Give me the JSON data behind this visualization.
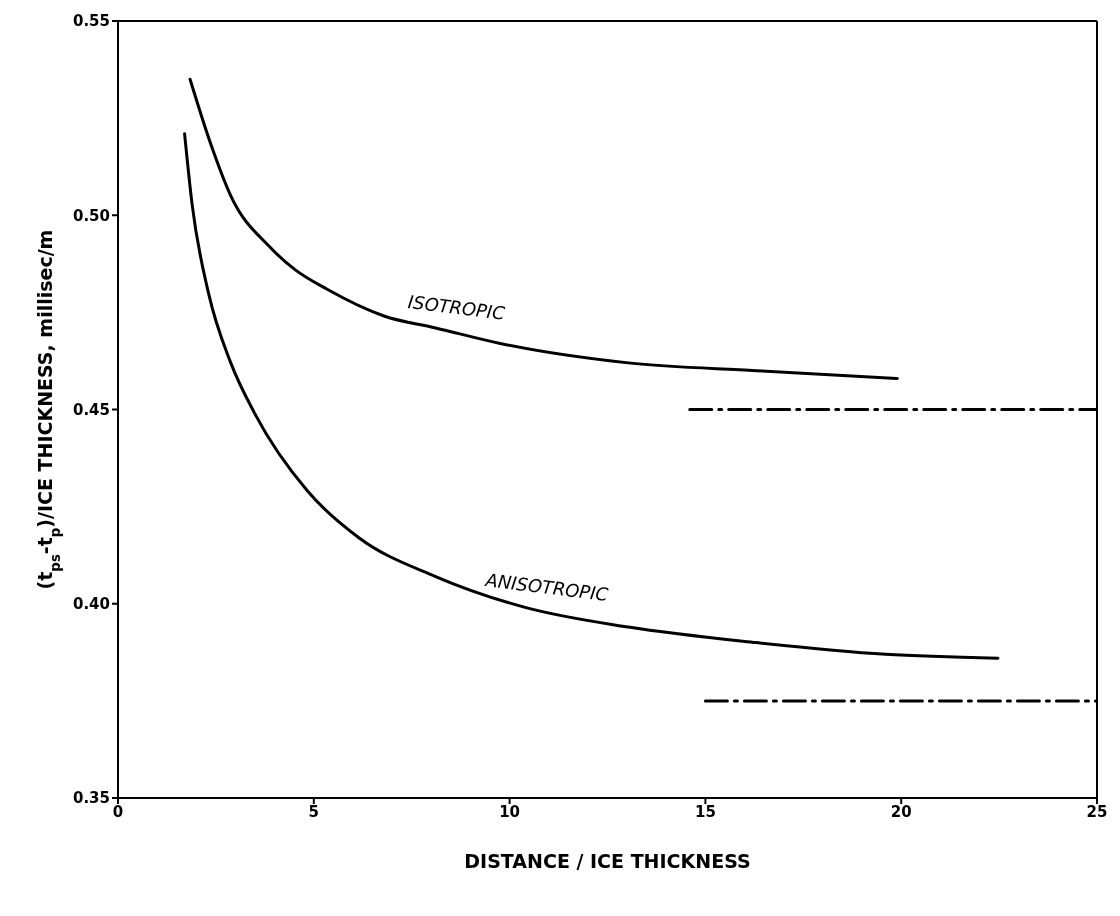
{
  "chart_data": {
    "type": "line",
    "xlabel": "DISTANCE / ICE THICKNESS",
    "ylabel": "(t$_{ps}$-t$_{p}$)/ICE THICKNESS, millisec/m",
    "xlim": [
      0,
      25
    ],
    "xticks": [
      0,
      5,
      10,
      15,
      20,
      25
    ],
    "ylim": [
      0.35,
      0.55
    ],
    "yticks": [
      {
        "value": 0.35,
        "label": "0.35"
      },
      {
        "value": 0.4,
        "label": "0.40"
      },
      {
        "value": 0.45,
        "label": "0.45"
      },
      {
        "value": 0.5,
        "label": "0.50"
      },
      {
        "value": 0.55,
        "label": "0.55"
      }
    ],
    "marker": "none",
    "series": [
      {
        "name": "ISOTROPIC",
        "color": "#000000",
        "line_style": "solid",
        "x": [
          1.84,
          2.38,
          2.88,
          3.86,
          4.52,
          5.33,
          6.81,
          8.11,
          9.76,
          13.03,
          16.3,
          19.9
        ],
        "values": [
          0.535,
          0.518,
          0.505,
          0.492,
          0.486,
          0.481,
          0.474,
          0.471,
          0.467,
          0.462,
          0.46,
          0.458
        ]
      },
      {
        "name": "ANISOTROPIC",
        "color": "#000000",
        "line_style": "solid",
        "x": [
          1.7,
          1.89,
          2.31,
          2.88,
          3.49,
          4.84,
          6.15,
          8.11,
          10.42,
          13.03,
          16.3,
          19.6,
          22.47
        ],
        "values": [
          0.521,
          0.503,
          0.48,
          0.462,
          0.449,
          0.429,
          0.417,
          0.407,
          0.399,
          0.394,
          0.39,
          0.387,
          0.386
        ]
      },
      {
        "color": "#000000",
        "line_style": "dashed",
        "x": [
          14.6,
          25
        ],
        "values": [
          0.45,
          0.45
        ]
      },
      {
        "color": "#000000",
        "line_style": "dashed",
        "x": [
          15,
          25
        ],
        "values": [
          0.375,
          0.375
        ]
      }
    ]
  }
}
